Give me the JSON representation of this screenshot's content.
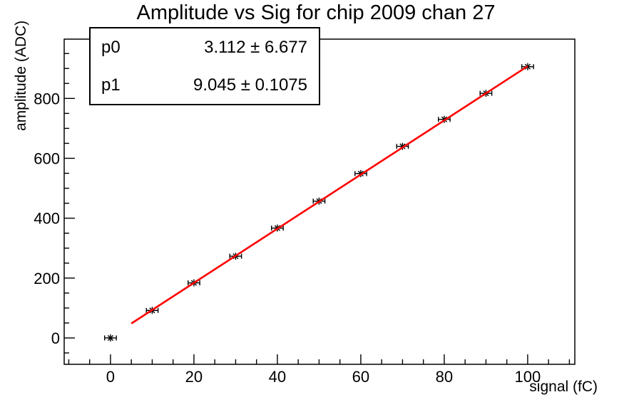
{
  "title": "Amplitude vs Sig for chip 2009 chan 27",
  "stats_box": {
    "rows": [
      {
        "param": "p0",
        "value": "3.112 ± 6.677"
      },
      {
        "param": "p1",
        "value": "9.045 ± 0.1075"
      }
    ]
  },
  "axes": {
    "x_title": "signal (fC)",
    "y_title": "amplitude (ADC)"
  },
  "chart_data": {
    "type": "scatter",
    "title": "Amplitude vs Sig for chip 2009 chan 27",
    "xlabel": "signal (fC)",
    "ylabel": "amplitude (ADC)",
    "x": [
      0,
      10,
      20,
      30,
      40,
      50,
      60,
      70,
      80,
      90,
      100
    ],
    "y": [
      0,
      92,
      184,
      273,
      367,
      457,
      549,
      640,
      730,
      817,
      906
    ],
    "x_err": 1.4,
    "marker": "asterisk",
    "marker_color": "#000000",
    "fit": {
      "type": "linear",
      "p0": 3.112,
      "p1": 9.045,
      "p0_err": 6.677,
      "p1_err": 0.1075,
      "x_range": [
        5,
        100
      ],
      "color": "#ff0000"
    },
    "xlim": [
      -11.1,
      111.3
    ],
    "ylim": [
      -88,
      998
    ],
    "x_major_ticks": [
      0,
      20,
      40,
      60,
      80,
      100
    ],
    "y_major_ticks": [
      0,
      200,
      400,
      600,
      800
    ],
    "x_minor_step": 5,
    "y_minor_step": 50,
    "grid": false,
    "legend": "none"
  },
  "colors": {
    "background": "#ffffff",
    "axes": "#000000",
    "fit_line": "#ff0000",
    "marker": "#000000"
  }
}
